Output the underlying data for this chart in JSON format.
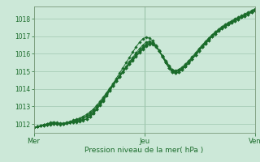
{
  "title": "Pression niveau de la mer( hPa )",
  "bg_color": "#cce8d8",
  "grid_color": "#a0c8b0",
  "line_color": "#1a6b2a",
  "marker_color": "#1a6b2a",
  "ylim": [
    1011.5,
    1018.7
  ],
  "yticks": [
    1012,
    1013,
    1014,
    1015,
    1016,
    1017,
    1018
  ],
  "xtick_labels": [
    "Mer",
    "Jeu",
    "Ven"
  ],
  "xtick_positions": [
    0.0,
    0.5,
    1.0
  ],
  "series": [
    [
      1011.8,
      1011.85,
      1011.9,
      1011.92,
      1011.95,
      1011.98,
      1012.0,
      1012.0,
      1011.98,
      1012.0,
      1012.05,
      1012.08,
      1012.1,
      1012.12,
      1012.15,
      1012.2,
      1012.3,
      1012.4,
      1012.6,
      1012.85,
      1013.1,
      1013.4,
      1013.7,
      1014.0,
      1014.3,
      1014.6,
      1014.9,
      1015.2,
      1015.5,
      1015.8,
      1016.1,
      1016.4,
      1016.65,
      1016.85,
      1016.95,
      1016.9,
      1016.75,
      1016.5,
      1016.2,
      1015.85,
      1015.5,
      1015.2,
      1015.0,
      1015.0,
      1015.05,
      1015.15,
      1015.3,
      1015.5,
      1015.7,
      1015.95,
      1016.2,
      1016.45,
      1016.65,
      1016.85,
      1017.05,
      1017.2,
      1017.35,
      1017.5,
      1017.6,
      1017.72,
      1017.82,
      1017.9,
      1018.0,
      1018.1,
      1018.18,
      1018.28,
      1018.38,
      1018.48
    ],
    [
      1011.8,
      1011.85,
      1011.9,
      1011.93,
      1011.96,
      1012.0,
      1012.02,
      1012.0,
      1012.0,
      1012.02,
      1012.05,
      1012.08,
      1012.12,
      1012.15,
      1012.18,
      1012.22,
      1012.3,
      1012.42,
      1012.6,
      1012.82,
      1013.05,
      1013.3,
      1013.6,
      1013.9,
      1014.18,
      1014.45,
      1014.72,
      1015.0,
      1015.28,
      1015.55,
      1015.8,
      1016.05,
      1016.28,
      1016.5,
      1016.65,
      1016.72,
      1016.65,
      1016.45,
      1016.18,
      1015.85,
      1015.52,
      1015.2,
      1014.95,
      1014.9,
      1014.98,
      1015.12,
      1015.28,
      1015.48,
      1015.68,
      1015.92,
      1016.15,
      1016.38,
      1016.58,
      1016.78,
      1016.98,
      1017.15,
      1017.3,
      1017.45,
      1017.55,
      1017.68,
      1017.78,
      1017.88,
      1017.98,
      1018.08,
      1018.16,
      1018.26,
      1018.36,
      1018.46
    ],
    [
      1011.8,
      1011.85,
      1011.9,
      1011.95,
      1011.98,
      1012.02,
      1012.05,
      1012.02,
      1012.0,
      1012.02,
      1012.05,
      1012.1,
      1012.15,
      1012.2,
      1012.25,
      1012.3,
      1012.4,
      1012.52,
      1012.68,
      1012.88,
      1013.1,
      1013.35,
      1013.62,
      1013.9,
      1014.18,
      1014.44,
      1014.7,
      1014.96,
      1015.22,
      1015.48,
      1015.72,
      1015.96,
      1016.18,
      1016.38,
      1016.55,
      1016.65,
      1016.6,
      1016.42,
      1016.15,
      1015.82,
      1015.5,
      1015.18,
      1014.95,
      1014.9,
      1014.98,
      1015.12,
      1015.3,
      1015.5,
      1015.7,
      1015.93,
      1016.15,
      1016.38,
      1016.58,
      1016.78,
      1016.98,
      1017.15,
      1017.3,
      1017.45,
      1017.56,
      1017.68,
      1017.78,
      1017.88,
      1017.98,
      1018.08,
      1018.16,
      1018.26,
      1018.36,
      1018.46
    ],
    [
      1011.8,
      1011.85,
      1011.9,
      1011.95,
      1012.0,
      1012.05,
      1012.08,
      1012.05,
      1012.02,
      1012.03,
      1012.08,
      1012.12,
      1012.18,
      1012.25,
      1012.3,
      1012.38,
      1012.48,
      1012.6,
      1012.78,
      1012.98,
      1013.2,
      1013.45,
      1013.7,
      1013.96,
      1014.22,
      1014.46,
      1014.7,
      1014.94,
      1015.18,
      1015.42,
      1015.65,
      1015.88,
      1016.1,
      1016.3,
      1016.48,
      1016.6,
      1016.58,
      1016.42,
      1016.18,
      1015.88,
      1015.58,
      1015.28,
      1015.05,
      1015.0,
      1015.08,
      1015.2,
      1015.38,
      1015.58,
      1015.78,
      1016.0,
      1016.22,
      1016.44,
      1016.64,
      1016.84,
      1017.03,
      1017.2,
      1017.35,
      1017.5,
      1017.62,
      1017.74,
      1017.84,
      1017.94,
      1018.04,
      1018.14,
      1018.22,
      1018.32,
      1018.42,
      1018.52
    ],
    [
      1011.8,
      1011.86,
      1011.92,
      1011.97,
      1012.02,
      1012.08,
      1012.12,
      1012.08,
      1012.05,
      1012.06,
      1012.1,
      1012.15,
      1012.22,
      1012.28,
      1012.35,
      1012.44,
      1012.55,
      1012.68,
      1012.85,
      1013.05,
      1013.28,
      1013.52,
      1013.78,
      1014.04,
      1014.28,
      1014.52,
      1014.75,
      1014.98,
      1015.2,
      1015.42,
      1015.63,
      1015.84,
      1016.05,
      1016.24,
      1016.42,
      1016.55,
      1016.55,
      1016.4,
      1016.18,
      1015.9,
      1015.62,
      1015.34,
      1015.1,
      1015.05,
      1015.12,
      1015.25,
      1015.42,
      1015.62,
      1015.82,
      1016.05,
      1016.28,
      1016.5,
      1016.7,
      1016.9,
      1017.08,
      1017.25,
      1017.4,
      1017.55,
      1017.67,
      1017.79,
      1017.89,
      1017.99,
      1018.09,
      1018.19,
      1018.27,
      1018.37,
      1018.47,
      1018.57
    ]
  ]
}
